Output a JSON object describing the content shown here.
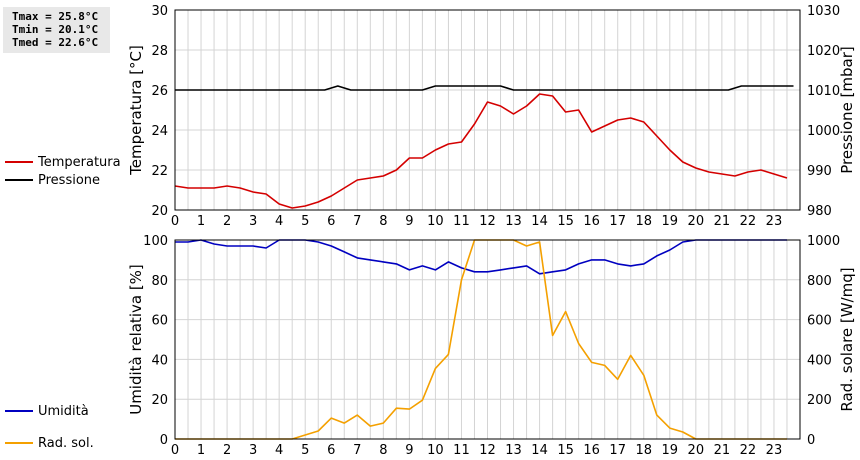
{
  "stats": {
    "tmax": "Tmax = 25.8°C",
    "tmin": "Tmin = 20.1°C",
    "tmed": "Tmed = 22.6°C"
  },
  "colors": {
    "temperature": "#d40000",
    "pressure": "#000000",
    "humidity": "#0000c0",
    "solar": "#f4a000",
    "grid": "#d4d4d4"
  },
  "chart_data": [
    {
      "type": "line",
      "xlabel": "",
      "x_ticks": [
        "0",
        "1",
        "2",
        "3",
        "4",
        "5",
        "6",
        "7",
        "8",
        "9",
        "10",
        "11",
        "12",
        "13",
        "14",
        "15",
        "16",
        "17",
        "18",
        "19",
        "20",
        "21",
        "22",
        "23"
      ],
      "xlim": [
        0,
        24
      ],
      "left_axis": {
        "label": "Temperatura [°C]",
        "lim": [
          20,
          30
        ],
        "ticks": [
          "20",
          "22",
          "24",
          "26",
          "28",
          "30"
        ]
      },
      "right_axis": {
        "label": "Pressione [mbar]",
        "lim": [
          980,
          1030
        ],
        "ticks": [
          "980",
          "990",
          "1000",
          "1010",
          "1020",
          "1030"
        ]
      },
      "grid": true,
      "series": [
        {
          "name": "Temperatura",
          "axis": "left",
          "color": "#d40000",
          "x": [
            0,
            0.5,
            1,
            1.5,
            2,
            2.5,
            3,
            3.5,
            4,
            4.5,
            5,
            5.5,
            6,
            6.5,
            7,
            7.5,
            8,
            8.5,
            9,
            9.5,
            10,
            10.5,
            11,
            11.5,
            12,
            12.5,
            13,
            13.5,
            14,
            14.5,
            15,
            15.5,
            16,
            16.5,
            17,
            17.5,
            18,
            18.5,
            19,
            19.5,
            20,
            20.5,
            21,
            21.5,
            22,
            22.5,
            23,
            23.5
          ],
          "y": [
            21.2,
            21.1,
            21.1,
            21.1,
            21.2,
            21.1,
            20.9,
            20.8,
            20.3,
            20.1,
            20.2,
            20.4,
            20.7,
            21.1,
            21.5,
            21.6,
            21.7,
            22.0,
            22.6,
            22.6,
            23.0,
            23.3,
            23.4,
            24.3,
            25.4,
            25.2,
            24.8,
            25.2,
            25.8,
            25.7,
            24.9,
            25.0,
            23.9,
            24.2,
            24.5,
            24.6,
            24.4,
            23.7,
            23.0,
            22.4,
            22.1,
            21.9,
            21.8,
            21.7,
            21.9,
            22.0,
            21.8,
            21.6
          ]
        },
        {
          "name": "Pressione",
          "axis": "right",
          "color": "#000000",
          "x": [
            0,
            5.75,
            6.25,
            6.75,
            9.5,
            10,
            12.5,
            13,
            21.25,
            21.75,
            23.75
          ],
          "y": [
            1010,
            1010,
            1011,
            1010,
            1010,
            1011,
            1011,
            1010,
            1010,
            1011,
            1011
          ]
        }
      ],
      "legend": [
        "Temperatura",
        "Pressione"
      ]
    },
    {
      "type": "line",
      "xlabel": "",
      "x_ticks": [
        "0",
        "1",
        "2",
        "3",
        "4",
        "5",
        "6",
        "7",
        "8",
        "9",
        "10",
        "11",
        "12",
        "13",
        "14",
        "15",
        "16",
        "17",
        "18",
        "19",
        "20",
        "21",
        "22",
        "23"
      ],
      "xlim": [
        0,
        24
      ],
      "left_axis": {
        "label": "Umidità relativa [%]",
        "lim": [
          0,
          100
        ],
        "ticks": [
          "0",
          "20",
          "40",
          "60",
          "80",
          "100"
        ]
      },
      "right_axis": {
        "label": "Rad. solare [W/mq]",
        "lim": [
          0,
          1000
        ],
        "ticks": [
          "0",
          "200",
          "400",
          "600",
          "800",
          "1000"
        ]
      },
      "grid": true,
      "series": [
        {
          "name": "Umidità",
          "axis": "left",
          "color": "#0000c0",
          "x": [
            0,
            0.5,
            1,
            1.5,
            2,
            2.5,
            3,
            3.5,
            4,
            4.5,
            5,
            5.5,
            6,
            6.5,
            7,
            7.5,
            8,
            8.5,
            9,
            9.5,
            10,
            10.5,
            11,
            11.5,
            12,
            12.5,
            13,
            13.5,
            14,
            14.5,
            15,
            15.5,
            16,
            16.5,
            17,
            17.5,
            18,
            18.5,
            19,
            19.5,
            20,
            20.5,
            21,
            21.5,
            22,
            22.5,
            23,
            23.5
          ],
          "y": [
            99,
            99,
            100,
            98,
            97,
            97,
            97,
            96,
            100,
            100,
            100,
            99,
            97,
            94,
            91,
            90,
            89,
            88,
            85,
            87,
            85,
            89,
            86,
            84,
            84,
            85,
            86,
            87,
            83,
            84,
            85,
            88,
            90,
            90,
            88,
            87,
            88,
            92,
            95,
            99,
            100,
            100,
            100,
            100,
            100,
            100,
            100,
            100
          ]
        },
        {
          "name": "Rad. sol.",
          "axis": "right",
          "color": "#f4a000",
          "x": [
            0,
            0.5,
            1,
            1.5,
            2,
            2.5,
            3,
            3.5,
            4,
            4.5,
            5,
            5.5,
            6,
            6.5,
            7,
            7.5,
            8,
            8.5,
            9,
            9.5,
            10,
            10.5,
            11,
            11.5,
            12,
            12.5,
            13,
            13.5,
            14,
            14.5,
            15,
            15.5,
            16,
            16.5,
            17,
            17.5,
            18,
            18.5,
            19,
            19.5,
            20,
            20.5,
            21,
            21.5,
            22,
            22.5,
            23,
            23.5
          ],
          "y": [
            0,
            0,
            0,
            0,
            0,
            0,
            0,
            0,
            0,
            0,
            20,
            40,
            105,
            80,
            120,
            65,
            80,
            155,
            150,
            195,
            355,
            425,
            800,
            1000,
            1000,
            1000,
            1000,
            970,
            990,
            520,
            640,
            480,
            385,
            370,
            300,
            420,
            320,
            120,
            55,
            35,
            0,
            0,
            0,
            0,
            0,
            0,
            0,
            0
          ]
        }
      ],
      "legend": [
        "Umidità",
        "Rad. sol."
      ]
    }
  ]
}
